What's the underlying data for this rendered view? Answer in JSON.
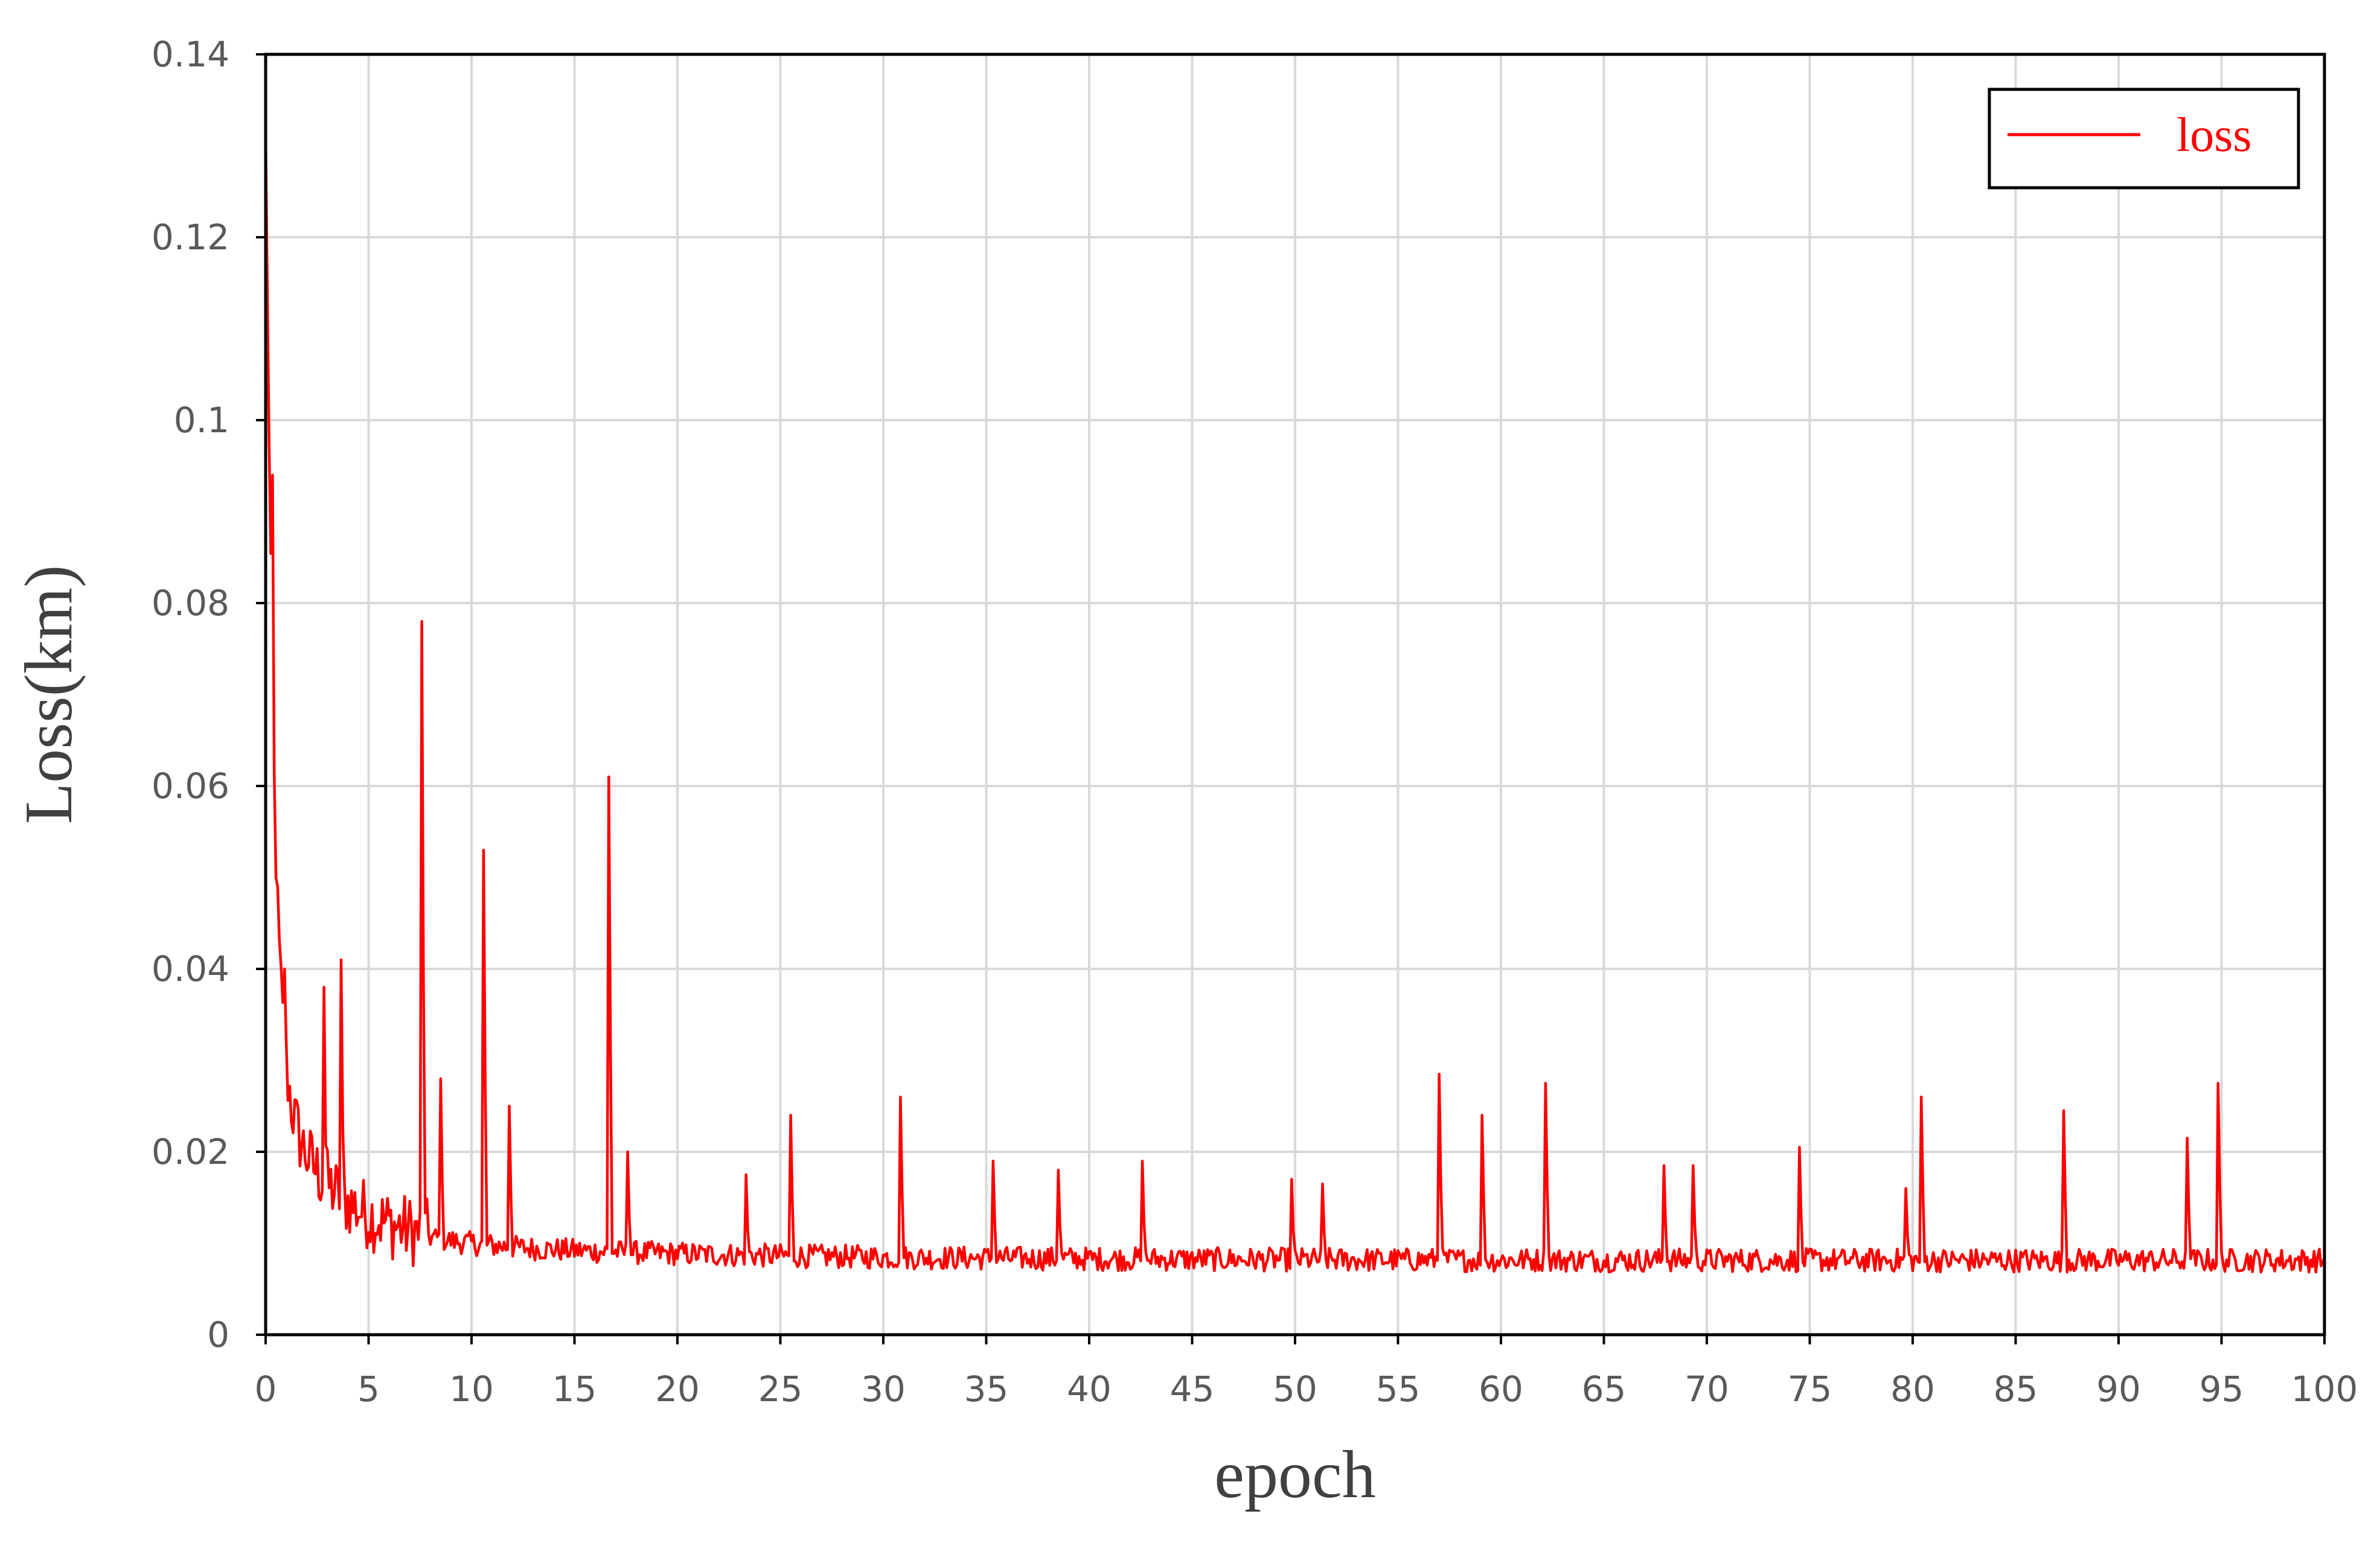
{
  "chart_data": {
    "type": "line",
    "xlabel": "epoch",
    "ylabel": "Loss(km)",
    "xlim": [
      0,
      100
    ],
    "ylim": [
      0,
      0.14
    ],
    "x_ticks": [
      "0",
      "5",
      "10",
      "15",
      "20",
      "25",
      "30",
      "35",
      "40",
      "45",
      "50",
      "55",
      "60",
      "65",
      "70",
      "75",
      "80",
      "85",
      "90",
      "95",
      "100"
    ],
    "y_ticks": [
      "0",
      "0.02",
      "0.04",
      "0.06",
      "0.08",
      "0.1",
      "0.12",
      "0.14"
    ],
    "grid": true,
    "legend_position": "top-right",
    "series": [
      {
        "name": "loss",
        "color": "#ff0000",
        "peaks": [
          {
            "x": 0.0,
            "y": 0.131
          },
          {
            "x": 0.3,
            "y": 0.094
          },
          {
            "x": 0.6,
            "y": 0.049
          },
          {
            "x": 0.9,
            "y": 0.04
          },
          {
            "x": 2.8,
            "y": 0.038
          },
          {
            "x": 3.7,
            "y": 0.041
          },
          {
            "x": 7.6,
            "y": 0.078
          },
          {
            "x": 8.5,
            "y": 0.028
          },
          {
            "x": 10.6,
            "y": 0.053
          },
          {
            "x": 11.8,
            "y": 0.025
          },
          {
            "x": 16.7,
            "y": 0.061
          },
          {
            "x": 17.6,
            "y": 0.02
          },
          {
            "x": 23.3,
            "y": 0.0175
          },
          {
            "x": 25.5,
            "y": 0.024
          },
          {
            "x": 30.8,
            "y": 0.026
          },
          {
            "x": 35.3,
            "y": 0.019
          },
          {
            "x": 38.5,
            "y": 0.018
          },
          {
            "x": 42.6,
            "y": 0.019
          },
          {
            "x": 49.8,
            "y": 0.017
          },
          {
            "x": 51.3,
            "y": 0.0165
          },
          {
            "x": 57.0,
            "y": 0.0285
          },
          {
            "x": 59.1,
            "y": 0.024
          },
          {
            "x": 62.2,
            "y": 0.0275
          },
          {
            "x": 67.9,
            "y": 0.0185
          },
          {
            "x": 69.3,
            "y": 0.0185
          },
          {
            "x": 74.5,
            "y": 0.0205
          },
          {
            "x": 79.7,
            "y": 0.016
          },
          {
            "x": 80.4,
            "y": 0.026
          },
          {
            "x": 87.3,
            "y": 0.0245
          },
          {
            "x": 93.3,
            "y": 0.0215
          },
          {
            "x": 94.8,
            "y": 0.0275
          }
        ],
        "baseline_approx": 0.008
      }
    ]
  }
}
